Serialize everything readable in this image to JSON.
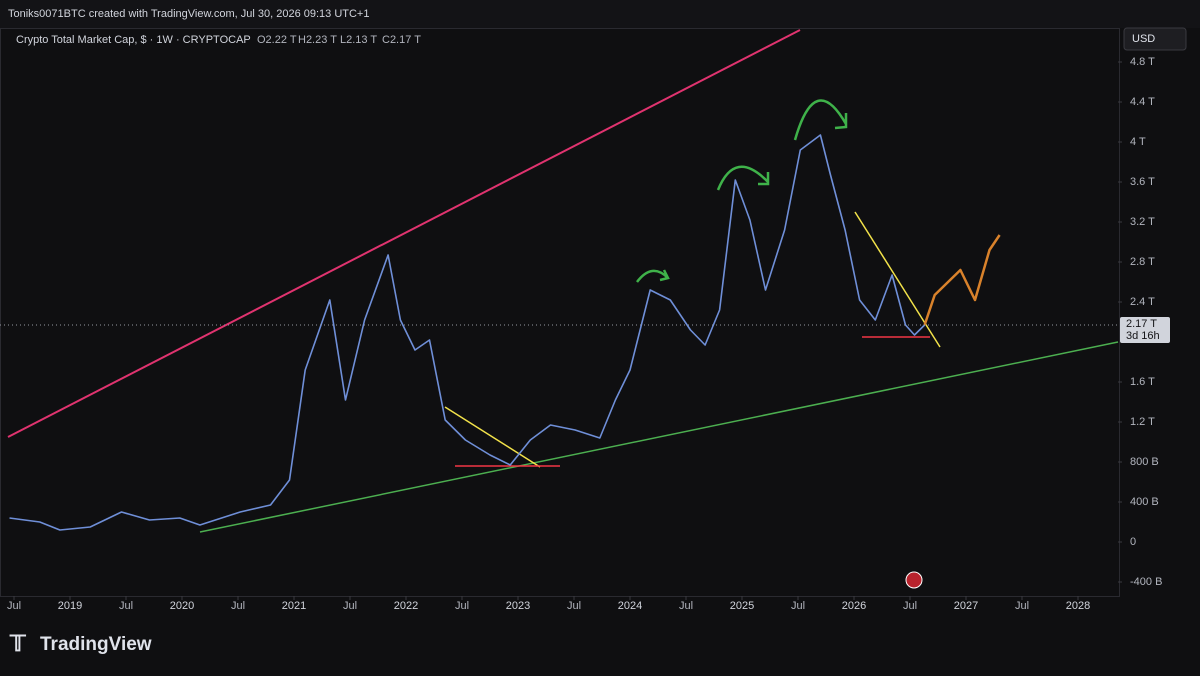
{
  "header": {
    "author_line": "Toniks0071BTC created with TradingView.com, Jul 30, 2026 09:13 UTC+1",
    "logo": "TradingView"
  },
  "chart_data": {
    "type": "line",
    "title": "Crypto Total Market Cap, $ · 1W · CRYPTOCAP",
    "ohlc": [
      "O2.22 T",
      "H2.23 T",
      "L2.13 T",
      "C2.17 T"
    ],
    "currency": "USD",
    "last_price": {
      "value": 2170,
      "label": "2.17 T"
    },
    "countdown": "3d 16h",
    "xlim": [
      2018.375,
      2028.357
    ],
    "ylim": [
      -540,
      5120
    ],
    "xticks": [
      {
        "value": 2018.5,
        "label": "Jul"
      },
      {
        "value": 2019,
        "label": "2019"
      },
      {
        "value": 2019.5,
        "label": "Jul"
      },
      {
        "value": 2020,
        "label": "2020"
      },
      {
        "value": 2020.5,
        "label": "Jul"
      },
      {
        "value": 2021,
        "label": "2021"
      },
      {
        "value": 2021.5,
        "label": "Jul"
      },
      {
        "value": 2022,
        "label": "2022"
      },
      {
        "value": 2022.5,
        "label": "Jul"
      },
      {
        "value": 2023,
        "label": "2023"
      },
      {
        "value": 2023.5,
        "label": "Jul"
      },
      {
        "value": 2024,
        "label": "2024"
      },
      {
        "value": 2024.5,
        "label": "Jul"
      },
      {
        "value": 2025,
        "label": "2025"
      },
      {
        "value": 2025.5,
        "label": "Jul"
      },
      {
        "value": 2026,
        "label": "2026"
      },
      {
        "value": 2026.5,
        "label": "Jul"
      },
      {
        "value": 2027,
        "label": "2027"
      },
      {
        "value": 2027.5,
        "label": "Jul"
      },
      {
        "value": 2028,
        "label": "2028"
      }
    ],
    "yticks": [
      {
        "value": 4800,
        "label": "4.8 T"
      },
      {
        "value": 4400,
        "label": "4.4 T"
      },
      {
        "value": 4000,
        "label": "4 T"
      },
      {
        "value": 3600,
        "label": "3.6 T"
      },
      {
        "value": 3200,
        "label": "3.2 T"
      },
      {
        "value": 2800,
        "label": "2.8 T"
      },
      {
        "value": 2400,
        "label": "2.4 T"
      },
      {
        "value": 1600,
        "label": "1.6 T"
      },
      {
        "value": 1200,
        "label": "1.2 T"
      },
      {
        "value": 800,
        "label": "800 B"
      },
      {
        "value": 400,
        "label": "400 B"
      },
      0,
      {
        "value": -400,
        "label": "-400 B"
      }
    ],
    "grid": false,
    "price": {
      "color": "#6f8fd8",
      "x": [
        2018.46,
        2018.73,
        2018.91,
        2019.18,
        2019.46,
        2019.71,
        2019.98,
        2020.16,
        2020.52,
        2020.79,
        2020.96,
        2021.1,
        2021.32,
        2021.46,
        2021.63,
        2021.84,
        2021.95,
        2022.08,
        2022.21,
        2022.35,
        2022.53,
        2022.75,
        2022.93,
        2023.11,
        2023.29,
        2023.51,
        2023.73,
        2023.87,
        2024.0,
        2024.18,
        2024.36,
        2024.54,
        2024.67,
        2024.8,
        2024.94,
        2025.07,
        2025.21,
        2025.38,
        2025.52,
        2025.7,
        2025.79,
        2025.92,
        2026.05,
        2026.19,
        2026.34,
        2026.46,
        2026.54,
        2026.63
      ],
      "values": [
        240,
        200,
        120,
        150,
        300,
        220,
        240,
        170,
        300,
        370,
        620,
        1720,
        2420,
        1420,
        2220,
        2870,
        2220,
        1920,
        2020,
        1220,
        1020,
        870,
        770,
        1020,
        1170,
        1120,
        1040,
        1420,
        1720,
        2520,
        2420,
        2120,
        1970,
        2320,
        3620,
        3220,
        2520,
        3120,
        3920,
        4070,
        3670,
        3120,
        2420,
        2220,
        2670,
        2170,
        2070,
        2170
      ]
    },
    "projection": {
      "color": "#d9822b",
      "x": [
        2026.63,
        2026.72,
        2026.95,
        2027.08,
        2027.21,
        2027.3
      ],
      "values": [
        2170,
        2470,
        2720,
        2420,
        2920,
        3070
      ]
    }
  }
}
